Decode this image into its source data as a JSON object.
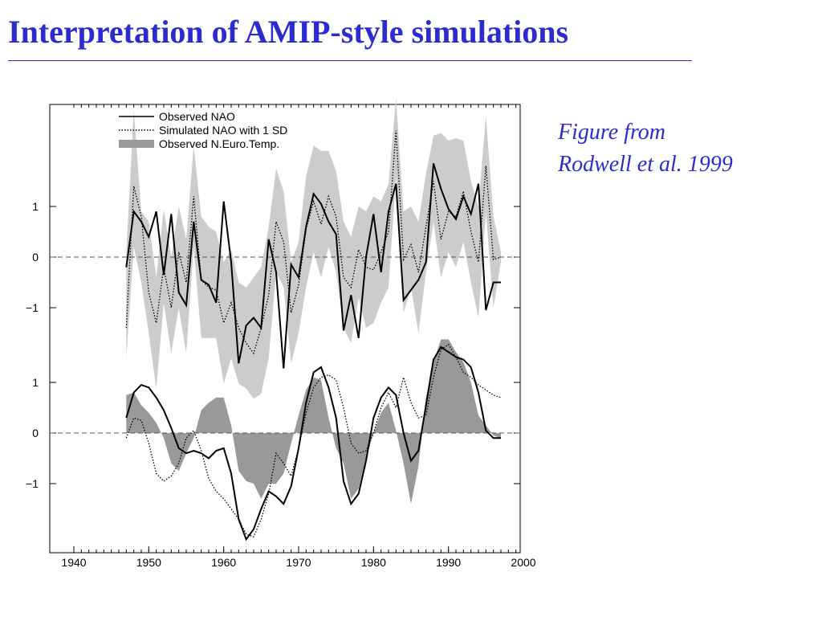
{
  "slide": {
    "title": "Interpretation of AMIP-style simulations",
    "caption_line1": "Figure from",
    "caption_line2": "Rodwell et al. 1999"
  },
  "chart_data": {
    "type": "line",
    "xlim": [
      1940,
      2000
    ],
    "x_ticks": [
      1940,
      1950,
      1960,
      1970,
      1980,
      1990,
      2000
    ],
    "legend": [
      {
        "label": "Observed NAO",
        "style": "solid"
      },
      {
        "label": "Simulated NAO with 1 SD",
        "style": "dotted"
      },
      {
        "label": "Observed N.Euro.Temp.",
        "style": "filled"
      }
    ],
    "legend_position": "top-left",
    "colors": {
      "sd_band": "#cccccc",
      "temp_fill": "#999999",
      "line": "#000000"
    },
    "panels": [
      {
        "name": "annual",
        "ylim": [
          -2.5,
          3
        ],
        "y_ticks": [
          -1,
          0,
          1
        ],
        "y_tick_labels": [
          "−1",
          "0",
          "1"
        ],
        "zero_line": "dashed",
        "x": [
          1947,
          1948,
          1949,
          1950,
          1951,
          1952,
          1953,
          1954,
          1955,
          1956,
          1957,
          1958,
          1959,
          1960,
          1961,
          1962,
          1963,
          1964,
          1965,
          1966,
          1967,
          1968,
          1969,
          1970,
          1971,
          1972,
          1973,
          1974,
          1975,
          1976,
          1977,
          1978,
          1979,
          1980,
          1981,
          1982,
          1983,
          1984,
          1985,
          1986,
          1987,
          1988,
          1989,
          1990,
          1991,
          1992,
          1993,
          1994,
          1995,
          1996,
          1997
        ],
        "series": [
          {
            "name": "Observed NAO",
            "values": [
              -0.2,
              0.9,
              0.7,
              0.4,
              0.9,
              -0.35,
              0.85,
              -0.7,
              -0.95,
              0.7,
              -0.45,
              -0.55,
              -0.9,
              1.1,
              -0.1,
              -2.1,
              -1.35,
              -1.2,
              -1.4,
              0.35,
              -0.3,
              -2.2,
              -0.15,
              -0.4,
              0.6,
              1.25,
              1.05,
              0.7,
              0.45,
              -1.45,
              -0.75,
              -1.6,
              0.0,
              0.85,
              -0.3,
              0.9,
              1.45,
              -0.85,
              -0.65,
              -0.45,
              -0.1,
              1.85,
              1.35,
              0.95,
              0.75,
              1.2,
              0.85,
              1.45,
              -1.05,
              -0.5,
              -0.5
            ]
          },
          {
            "name": "Simulated NAO with 1 SD",
            "values": [
              -1.4,
              1.4,
              0.8,
              -0.7,
              -1.3,
              -0.2,
              -1.0,
              0.1,
              -0.5,
              1.2,
              -0.45,
              -0.6,
              -0.65,
              -1.3,
              -0.9,
              -1.4,
              -1.7,
              -1.9,
              -1.4,
              -0.75,
              0.7,
              0.3,
              -1.1,
              -0.55,
              0.55,
              1.1,
              0.65,
              1.2,
              0.8,
              -0.4,
              -0.6,
              0.15,
              -0.2,
              -0.25,
              0.1,
              0.5,
              2.5,
              -0.05,
              0.25,
              -0.3,
              0.6,
              1.5,
              0.35,
              0.9,
              0.8,
              1.3,
              0.5,
              -0.1,
              1.8,
              -0.05,
              0.0
            ]
          },
          {
            "name": "SD band upper",
            "values": [
              0.1,
              2.9,
              0.9,
              0.7,
              -0.4,
              0.95,
              0.0,
              1.0,
              0.35,
              2.2,
              0.8,
              0.6,
              0.5,
              -0.1,
              0.15,
              -0.5,
              -0.6,
              -0.4,
              -0.2,
              0.6,
              1.75,
              1.3,
              -0.1,
              0.3,
              1.6,
              2.2,
              2.1,
              2.1,
              1.7,
              0.7,
              0.4,
              1.0,
              0.9,
              1.2,
              1.1,
              1.45,
              3.15,
              0.9,
              1.0,
              0.7,
              1.65,
              2.4,
              2.45,
              2.3,
              2.35,
              2.3,
              1.5,
              1.0,
              2.8,
              0.8,
              0.1
            ]
          },
          {
            "name": "SD band lower",
            "values": [
              -2.0,
              0.2,
              -0.5,
              -1.5,
              -2.6,
              -0.9,
              -1.9,
              -1.0,
              -1.9,
              0.2,
              -1.6,
              -1.6,
              -1.6,
              -2.5,
              -2.0,
              -2.5,
              -2.6,
              -2.8,
              -2.7,
              -2.0,
              -0.3,
              -0.6,
              -2.1,
              -1.5,
              -0.6,
              0.1,
              -0.4,
              0.2,
              -0.3,
              -1.4,
              -1.7,
              -0.8,
              -1.4,
              -1.3,
              -0.9,
              -0.6,
              1.6,
              -1.1,
              -0.6,
              -1.5,
              -0.3,
              0.7,
              -0.4,
              0.1,
              -0.2,
              0.3,
              -0.5,
              -1.2,
              0.9,
              -1.0,
              -0.1
            ]
          }
        ]
      },
      {
        "name": "smoothed",
        "ylim": [
          -2.5,
          1.5
        ],
        "y_ticks": [
          -1,
          0,
          1
        ],
        "y_tick_labels": [
          "−1",
          "0",
          "1"
        ],
        "zero_line": "dashed",
        "x": [
          1947,
          1948,
          1949,
          1950,
          1951,
          1952,
          1953,
          1954,
          1955,
          1956,
          1957,
          1958,
          1959,
          1960,
          1961,
          1962,
          1963,
          1964,
          1965,
          1966,
          1967,
          1968,
          1969,
          1970,
          1971,
          1972,
          1973,
          1974,
          1975,
          1976,
          1977,
          1978,
          1979,
          1980,
          1981,
          1982,
          1983,
          1984,
          1985,
          1986,
          1987,
          1988,
          1989,
          1990,
          1991,
          1992,
          1993,
          1994,
          1995,
          1996,
          1997
        ],
        "series": [
          {
            "name": "Observed NAO",
            "values": [
              0.3,
              0.8,
              0.95,
              0.9,
              0.7,
              0.45,
              0.1,
              -0.3,
              -0.4,
              -0.35,
              -0.4,
              -0.5,
              -0.35,
              -0.3,
              -0.8,
              -1.7,
              -2.1,
              -1.9,
              -1.5,
              -1.15,
              -1.25,
              -1.4,
              -1.05,
              -0.3,
              0.6,
              1.2,
              1.3,
              0.9,
              0.3,
              -0.95,
              -1.4,
              -1.2,
              -0.55,
              0.3,
              0.7,
              0.9,
              0.75,
              0.0,
              -0.55,
              -0.35,
              0.55,
              1.45,
              1.7,
              1.6,
              1.5,
              1.45,
              1.3,
              0.8,
              0.05,
              -0.1,
              -0.1
            ]
          },
          {
            "name": "Simulated NAO with 1 SD",
            "values": [
              -0.1,
              0.3,
              0.25,
              -0.2,
              -0.8,
              -0.95,
              -0.85,
              -0.6,
              -0.1,
              0.05,
              -0.35,
              -0.9,
              -1.15,
              -1.3,
              -1.5,
              -1.7,
              -2.0,
              -2.05,
              -1.7,
              -1.2,
              -0.4,
              -0.6,
              -0.85,
              -0.3,
              0.4,
              0.9,
              1.1,
              1.15,
              1.05,
              0.5,
              -0.2,
              -0.4,
              -0.35,
              0.0,
              0.5,
              0.8,
              0.5,
              1.1,
              0.6,
              0.3,
              0.35,
              1.1,
              1.65,
              1.75,
              1.5,
              1.2,
              1.1,
              0.95,
              0.85,
              0.75,
              0.7
            ]
          },
          {
            "name": "Observed N.Euro.Temp.",
            "values": [
              0.75,
              0.8,
              0.55,
              0.4,
              0.2,
              -0.1,
              -0.6,
              -0.75,
              -0.4,
              -0.1,
              0.45,
              0.6,
              0.7,
              0.7,
              0.15,
              -0.75,
              -0.95,
              -1.0,
              -1.3,
              -1.0,
              -1.0,
              -0.8,
              -0.2,
              0.35,
              0.85,
              1.1,
              1.05,
              0.3,
              -0.3,
              -0.6,
              -1.3,
              -1.1,
              -0.5,
              0.0,
              0.4,
              0.6,
              0.05,
              -0.6,
              -1.4,
              -0.65,
              0.7,
              1.4,
              1.85,
              1.85,
              1.6,
              1.4,
              1.0,
              0.35,
              0.15,
              -0.05,
              -0.1
            ]
          }
        ]
      }
    ]
  }
}
